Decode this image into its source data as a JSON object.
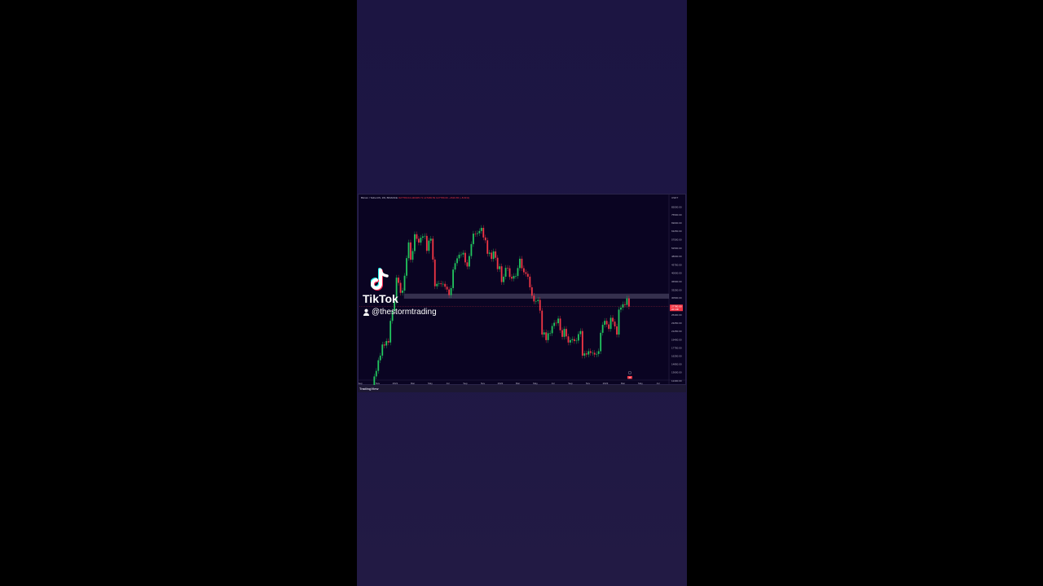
{
  "watermark": {
    "brand": "TikTok",
    "username": "@thestormtrading"
  },
  "chart_header": {
    "symbol": "Bitcoin / TetherUS, 1W, BINANCE",
    "ohlc": "O27780.04 H30405.71 L27186.53 C27780.00 −2616.65 (−8.61%)"
  },
  "footer": {
    "brand": "TradingView"
  },
  "colors": {
    "up": "#22c55e",
    "down": "#f23645",
    "zone": "#6b6785",
    "background": "#0a0422"
  },
  "chart_data": {
    "type": "candlestick",
    "interval": "1W",
    "scale": "log",
    "ylim": [
      12600,
      88500
    ],
    "currency_label": "USDT",
    "start_week": "2020-10-05",
    "closes": [
      11300,
      11500,
      13000,
      13800,
      15500,
      16300,
      18400,
      18200,
      19100,
      18800,
      23800,
      26500,
      29400,
      38100,
      36000,
      32300,
      33100,
      38900,
      47100,
      55900,
      46300,
      50900,
      61100,
      58100,
      55800,
      58800,
      59700,
      60000,
      51000,
      57000,
      58200,
      46400,
      34700,
      35600,
      35800,
      35500,
      35600,
      34500,
      33500,
      31500,
      34000,
      41600,
      44600,
      47000,
      48900,
      49000,
      49900,
      45000,
      43000,
      48200,
      54900,
      61500,
      61300,
      61800,
      63300,
      65500,
      59000,
      57200,
      49400,
      50000,
      46700,
      50700,
      47300,
      41800,
      43100,
      36300,
      38500,
      42400,
      42200,
      38400,
      37700,
      38800,
      38800,
      42300,
      46800,
      42200,
      40400,
      39700,
      38500,
      34300,
      31300,
      29400,
      29500,
      29900,
      26600,
      20500,
      21000,
      19300,
      20800,
      20800,
      22500,
      23300,
      23200,
      24400,
      21500,
      20000,
      21800,
      20100,
      18800,
      19300,
      19500,
      19100,
      19200,
      20600,
      21300,
      16300,
      16700,
      16500,
      17100,
      16800,
      16800,
      16500,
      16600,
      17100,
      20900,
      22800,
      23800,
      22900,
      21800,
      24600,
      23600,
      22400,
      20500,
      26900,
      27500,
      28500,
      28300,
      30400,
      27800
    ],
    "first_open": 10650,
    "zone": {
      "low": 30300,
      "high": 32000,
      "from": "2021-02"
    },
    "last_price": "27780.00",
    "countdown": "2d 14h",
    "x_ticks": [
      "Sep",
      "Nov",
      "2021",
      "Mar",
      "May",
      "Jul",
      "Sep",
      "Nov",
      "2022",
      "Mar",
      "May",
      "Jul",
      "Sep",
      "Nov",
      "2023",
      "Mar",
      "May",
      "Jul"
    ],
    "y_ticks": [
      "82000.00",
      "75500.00",
      "69000.00",
      "63250.00",
      "57500.00",
      "52500.00",
      "48000.00",
      "43750.00",
      "40000.00",
      "36500.00",
      "33250.00",
      "30500.00",
      "25400.00",
      "23250.00",
      "21250.00",
      "19400.00",
      "17750.00",
      "16250.00",
      "14850.00",
      "13600.00",
      "12400.00"
    ],
    "event_badge": "43"
  }
}
